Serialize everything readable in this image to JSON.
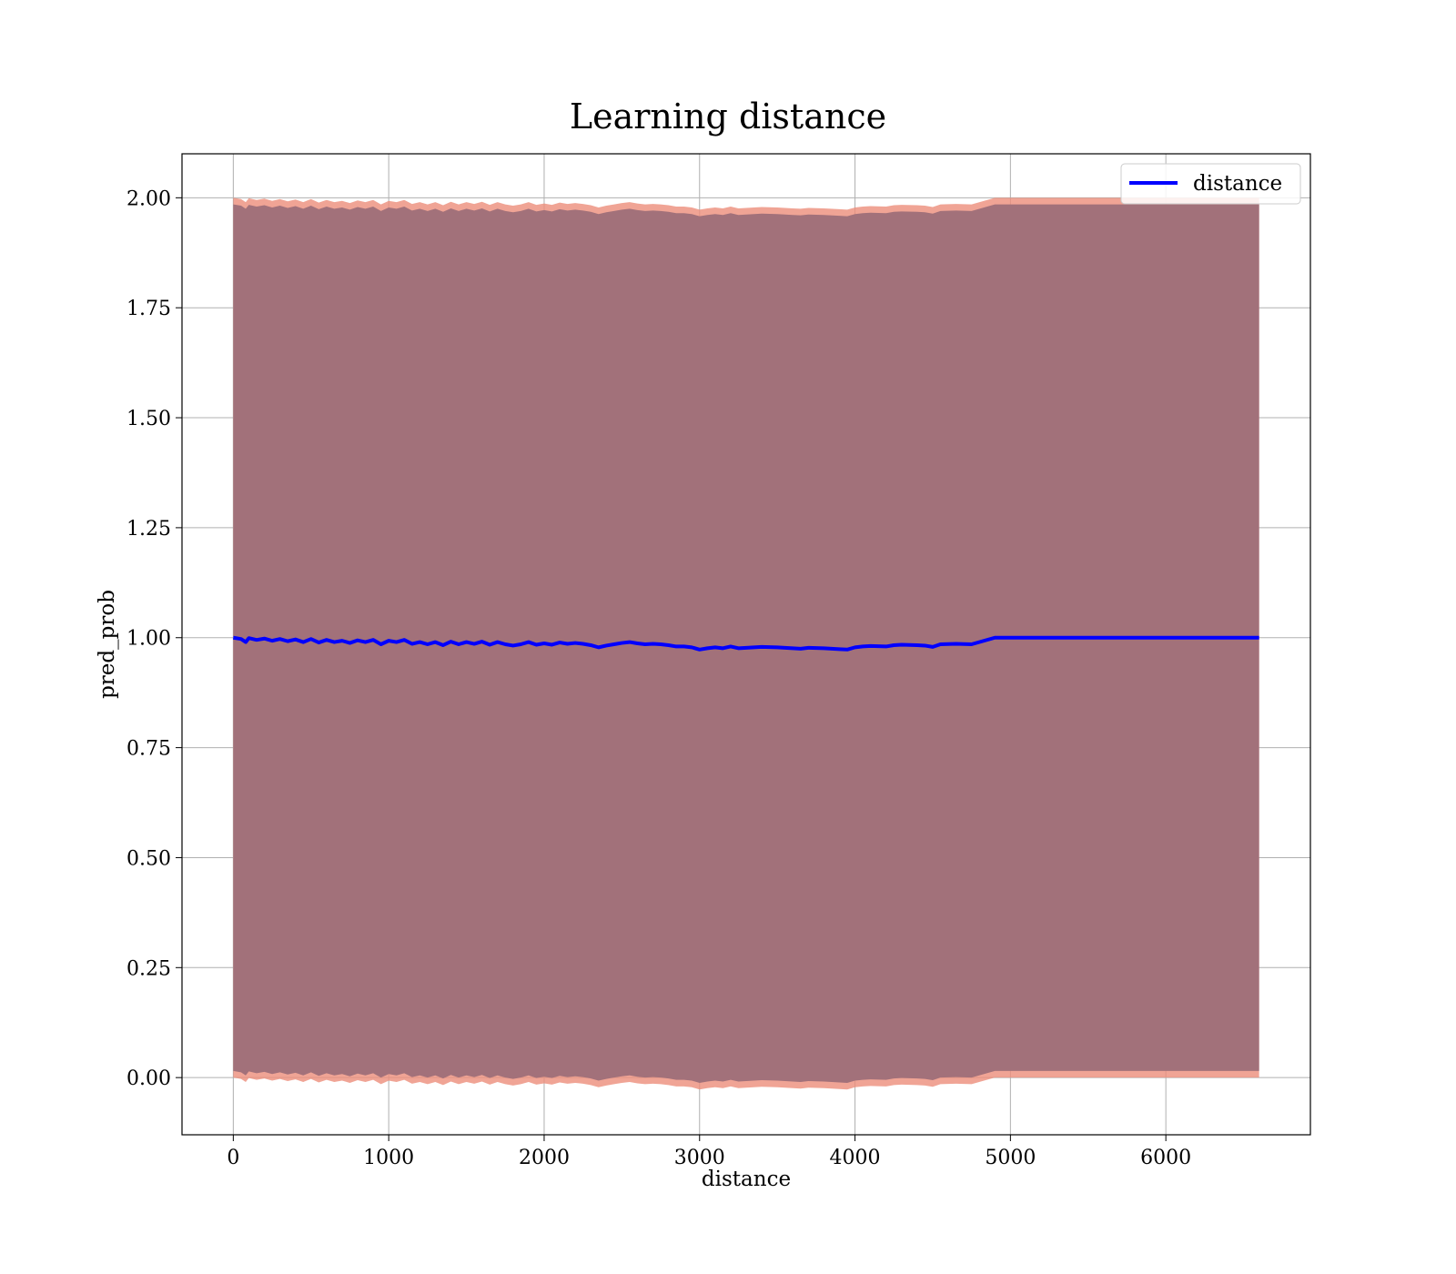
{
  "chart_data": {
    "type": "line",
    "title": "Learning distance",
    "xlabel": "distance",
    "ylabel": "pred_prob",
    "xlim": [
      -330,
      6930
    ],
    "ylim": [
      -0.13,
      2.1
    ],
    "xticks": [
      0,
      1000,
      2000,
      3000,
      4000,
      5000,
      6000
    ],
    "yticks": [
      0.0,
      0.25,
      0.5,
      0.75,
      1.0,
      1.25,
      1.5,
      1.75,
      2.0
    ],
    "xtick_labels": [
      "0",
      "1000",
      "2000",
      "3000",
      "4000",
      "5000",
      "6000"
    ],
    "ytick_labels": [
      "0.00",
      "0.25",
      "0.50",
      "0.75",
      "1.00",
      "1.25",
      "1.50",
      "1.75",
      "2.00"
    ],
    "grid": true,
    "legend_position": "top-right",
    "series": [
      {
        "name": "distance",
        "color": "#0000ff",
        "x": [
          0,
          50,
          80,
          100,
          150,
          200,
          250,
          300,
          350,
          400,
          450,
          500,
          550,
          600,
          650,
          700,
          750,
          800,
          850,
          900,
          950,
          1000,
          1050,
          1100,
          1150,
          1200,
          1250,
          1300,
          1350,
          1400,
          1450,
          1500,
          1550,
          1600,
          1650,
          1700,
          1750,
          1800,
          1850,
          1900,
          1950,
          2000,
          2050,
          2100,
          2150,
          2200,
          2250,
          2300,
          2350,
          2400,
          2450,
          2500,
          2550,
          2600,
          2650,
          2700,
          2750,
          2800,
          2850,
          2900,
          2950,
          3000,
          3050,
          3100,
          3150,
          3200,
          3250,
          3300,
          3350,
          3400,
          3500,
          3600,
          3650,
          3700,
          3800,
          3900,
          3950,
          4000,
          4050,
          4100,
          4200,
          4250,
          4300,
          4400,
          4450,
          4500,
          4550,
          4650,
          4750,
          4900,
          5000,
          5500,
          6000,
          6600
        ],
        "y": [
          1.0,
          0.997,
          0.99,
          0.999,
          0.995,
          0.998,
          0.993,
          0.997,
          0.992,
          0.996,
          0.99,
          0.997,
          0.989,
          0.995,
          0.99,
          0.993,
          0.988,
          0.994,
          0.99,
          0.995,
          0.985,
          0.993,
          0.99,
          0.995,
          0.986,
          0.99,
          0.985,
          0.99,
          0.983,
          0.991,
          0.985,
          0.99,
          0.986,
          0.991,
          0.984,
          0.99,
          0.985,
          0.982,
          0.985,
          0.99,
          0.984,
          0.987,
          0.984,
          0.989,
          0.986,
          0.988,
          0.986,
          0.983,
          0.978,
          0.982,
          0.985,
          0.988,
          0.99,
          0.987,
          0.985,
          0.986,
          0.985,
          0.983,
          0.98,
          0.98,
          0.978,
          0.973,
          0.976,
          0.978,
          0.976,
          0.98,
          0.976,
          0.977,
          0.978,
          0.979,
          0.978,
          0.976,
          0.975,
          0.977,
          0.976,
          0.974,
          0.973,
          0.978,
          0.98,
          0.981,
          0.98,
          0.983,
          0.984,
          0.983,
          0.982,
          0.979,
          0.985,
          0.986,
          0.985,
          1.0,
          1.0,
          1.0,
          1.0,
          1.0
        ]
      }
    ],
    "band_colors": {
      "outer": "#ec8d7a",
      "inner": "#a2717a"
    }
  }
}
